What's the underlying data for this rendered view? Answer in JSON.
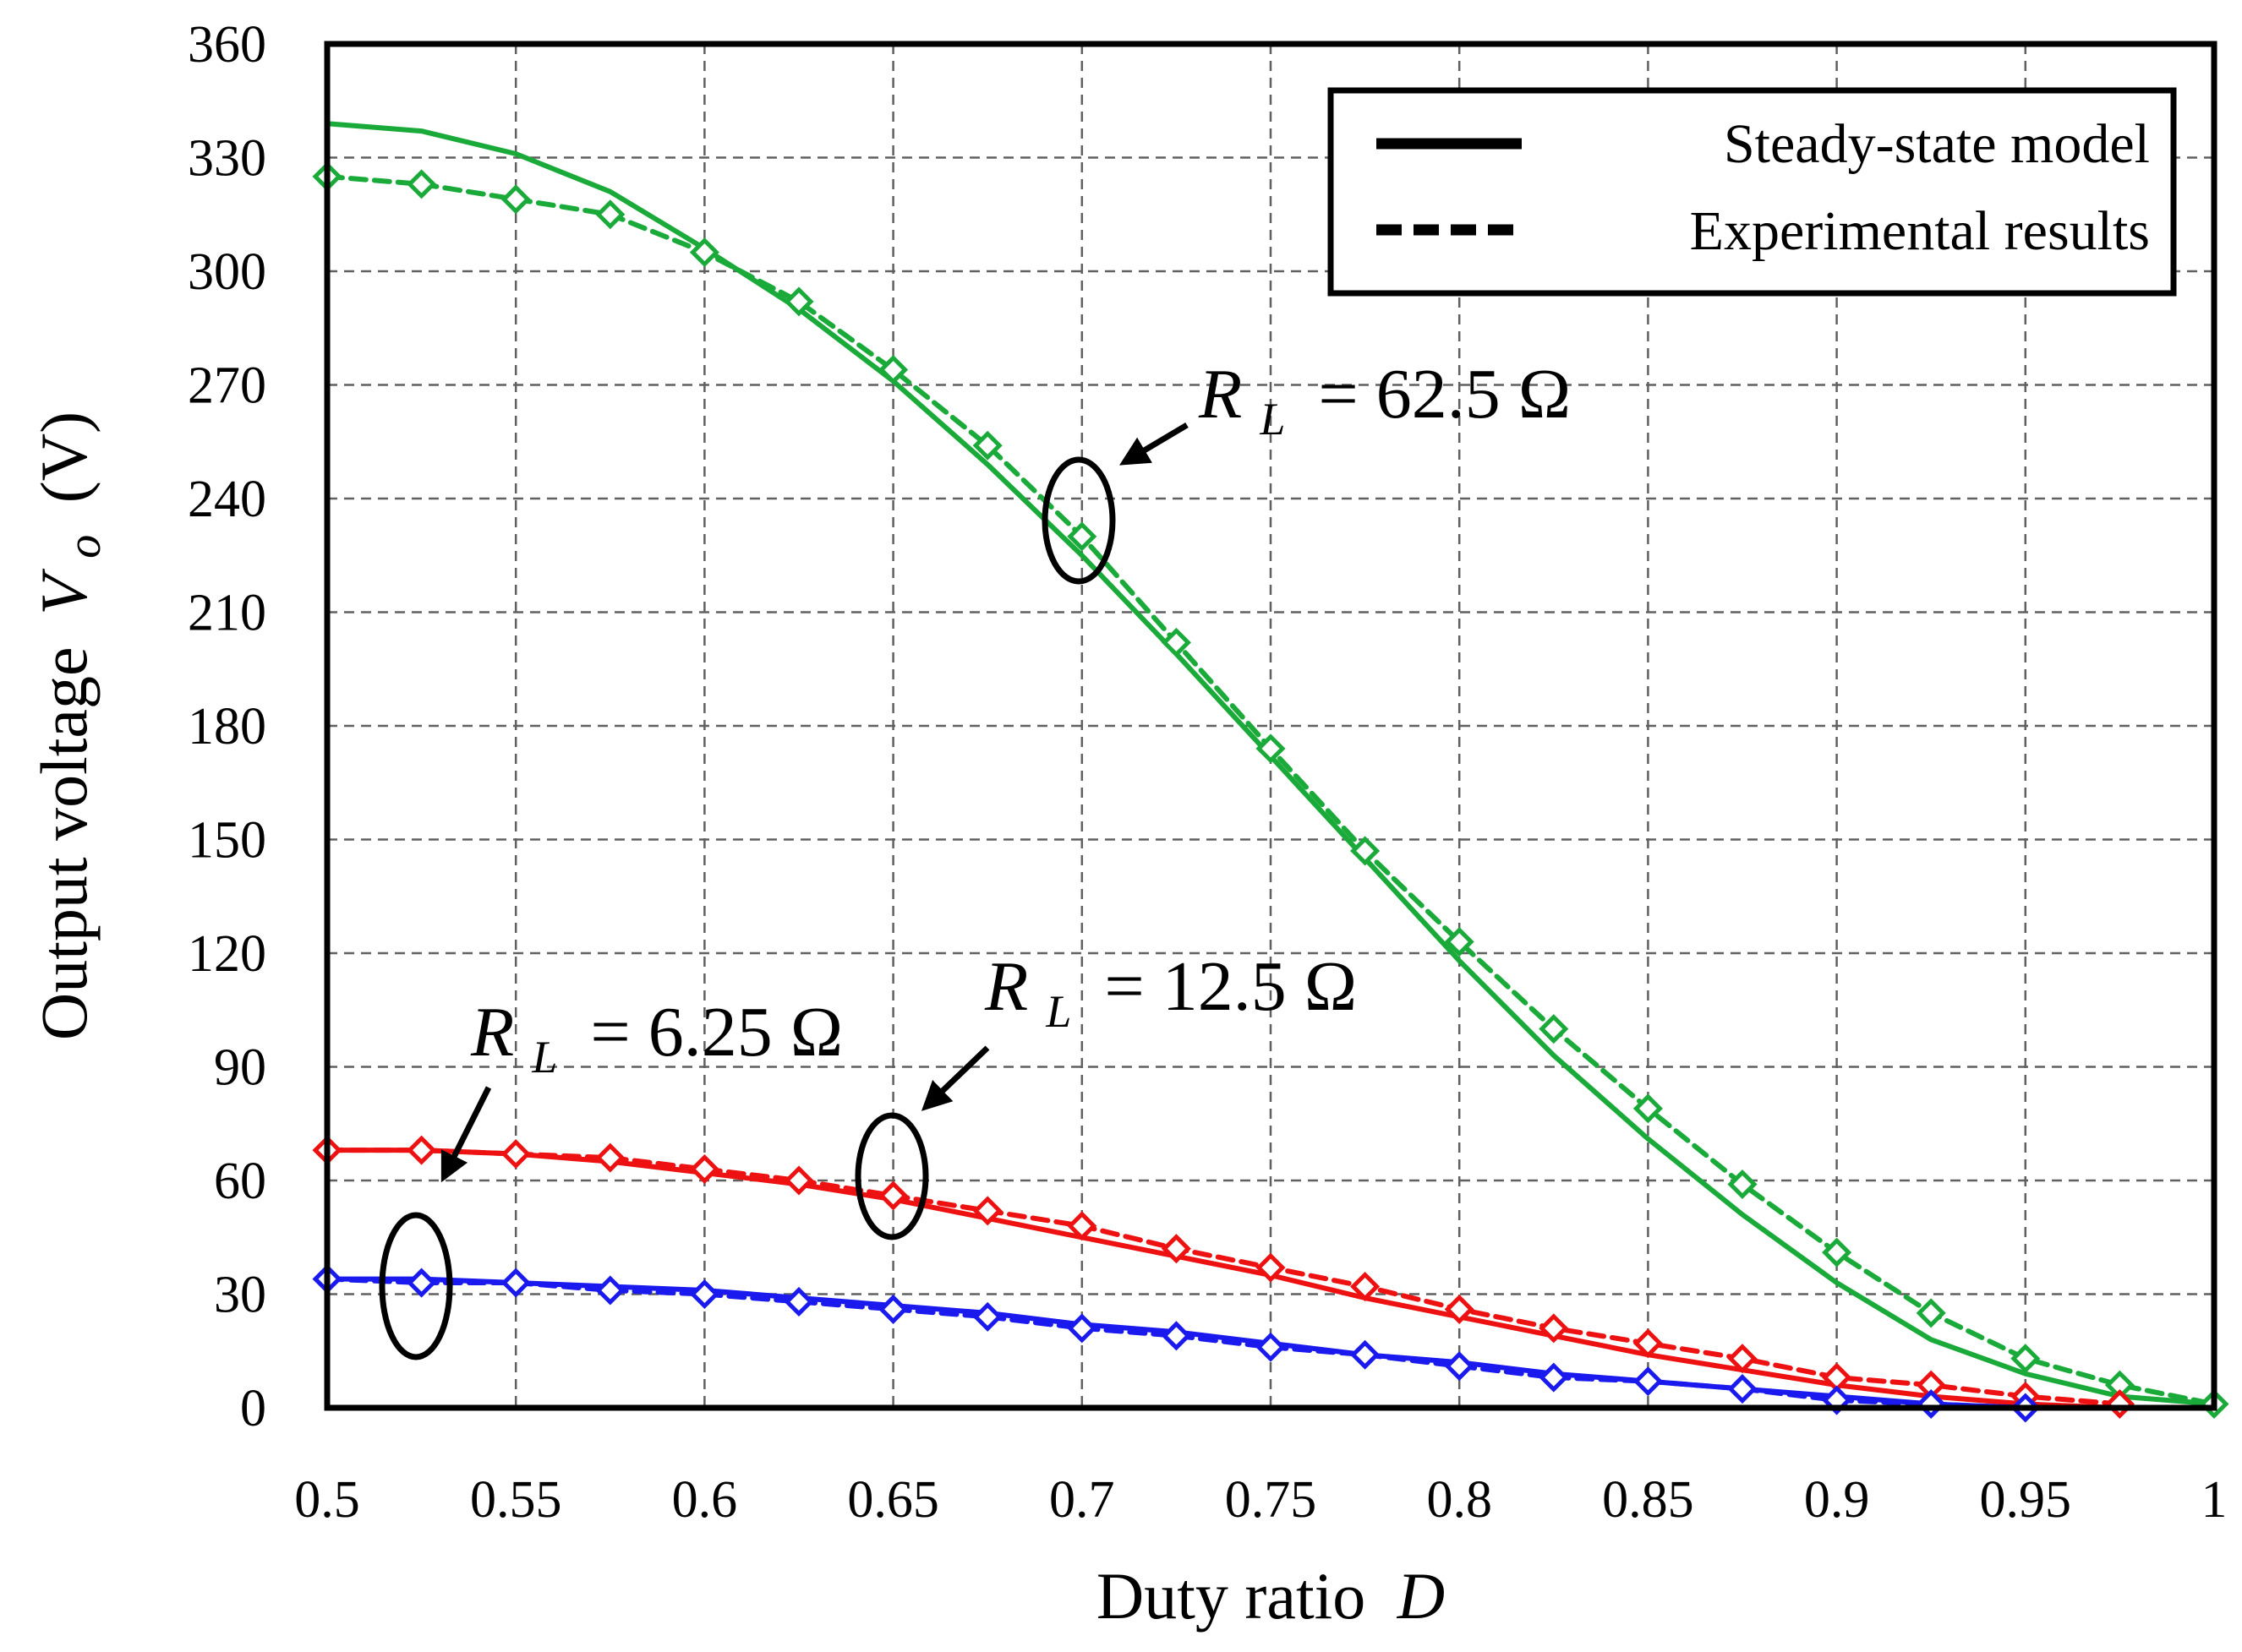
{
  "chart_data": {
    "type": "line",
    "title": "",
    "xlabel": "Duty ratio",
    "xlabel_var": "D",
    "ylabel": "Output voltage",
    "ylabel_var": "V",
    "ylabel_sub": "o",
    "ylabel_unit": "(V)",
    "xlim": [
      0.5,
      1
    ],
    "ylim": [
      0,
      360
    ],
    "grid": true,
    "x_ticks": [
      "0.5",
      "0.55",
      "0.6",
      "0.65",
      "0.7",
      "0.75",
      "0.8",
      "0.85",
      "0.9",
      "0.95",
      "1"
    ],
    "y_ticks": [
      "0",
      "30",
      "60",
      "90",
      "120",
      "150",
      "180",
      "210",
      "240",
      "270",
      "300",
      "330",
      "360"
    ],
    "legend": {
      "placement": "top-right",
      "entries": [
        {
          "label": "Steady-state model",
          "style": "solid"
        },
        {
          "label": "Experimental results",
          "style": "dashed"
        }
      ]
    },
    "series": [
      {
        "name": "RL = 62.5 Ω steady-state model",
        "color": "#1aaa3a",
        "style": "solid",
        "markers": false,
        "x": [
          0.5,
          0.525,
          0.55,
          0.575,
          0.6,
          0.625,
          0.65,
          0.675,
          0.7,
          0.725,
          0.75,
          0.775,
          0.8,
          0.825,
          0.85,
          0.875,
          0.9,
          0.925,
          0.95,
          0.975,
          1.0
        ],
        "y": [
          339,
          337,
          331,
          321,
          306,
          290,
          271,
          249,
          225,
          199,
          172,
          145,
          118,
          93,
          71,
          51,
          33,
          18,
          9,
          3,
          1
        ]
      },
      {
        "name": "RL = 62.5 Ω experimental results",
        "color": "#1aaa3a",
        "style": "dashed",
        "markers": true,
        "x": [
          0.5,
          0.525,
          0.55,
          0.575,
          0.6,
          0.625,
          0.65,
          0.675,
          0.7,
          0.725,
          0.75,
          0.775,
          0.8,
          0.825,
          0.85,
          0.875,
          0.9,
          0.925,
          0.95,
          0.975,
          1.0
        ],
        "y": [
          325,
          323,
          319,
          315,
          305,
          292,
          274,
          254,
          230,
          202,
          174,
          147,
          123,
          100,
          79,
          59,
          41,
          25,
          13,
          6,
          1
        ]
      },
      {
        "name": "RL = 12.5 Ω steady-state model",
        "color": "#ee1111",
        "style": "solid",
        "markers": false,
        "x": [
          0.5,
          0.525,
          0.55,
          0.575,
          0.6,
          0.625,
          0.65,
          0.675,
          0.7,
          0.725,
          0.75,
          0.775,
          0.8,
          0.825,
          0.85,
          0.875,
          0.9,
          0.925,
          0.95,
          0.975,
          1.0
        ],
        "y": [
          68,
          68,
          67,
          65,
          62,
          59,
          55,
          50,
          45,
          40,
          35,
          29,
          24,
          19,
          14,
          10,
          6,
          3,
          1,
          0,
          0
        ]
      },
      {
        "name": "RL = 12.5 Ω experimental results",
        "color": "#ee1111",
        "style": "dashed",
        "markers": true,
        "x": [
          0.5,
          0.525,
          0.55,
          0.575,
          0.6,
          0.625,
          0.65,
          0.675,
          0.7,
          0.725,
          0.75,
          0.775,
          0.8,
          0.825,
          0.85,
          0.875,
          0.9,
          0.925,
          0.95,
          0.975
        ],
        "y": [
          68,
          68,
          67,
          66,
          63,
          60,
          56,
          52,
          48,
          42,
          37,
          32,
          26,
          21,
          17,
          13,
          8,
          6,
          3,
          1
        ]
      },
      {
        "name": "RL = 6.25 Ω steady-state model",
        "color": "#1a1aee",
        "style": "solid",
        "markers": false,
        "x": [
          0.5,
          0.525,
          0.55,
          0.575,
          0.6,
          0.625,
          0.65,
          0.675,
          0.7,
          0.725,
          0.75,
          0.775,
          0.8,
          0.825,
          0.85,
          0.875,
          0.9,
          0.925,
          0.95
        ],
        "y": [
          34,
          34,
          33,
          32,
          31,
          29,
          27,
          25,
          22,
          20,
          17,
          14,
          12,
          9,
          7,
          5,
          3,
          1,
          0
        ]
      },
      {
        "name": "RL = 6.25 Ω experimental results",
        "color": "#1a1aee",
        "style": "dashed",
        "markers": true,
        "x": [
          0.5,
          0.525,
          0.55,
          0.575,
          0.6,
          0.625,
          0.65,
          0.675,
          0.7,
          0.725,
          0.75,
          0.775,
          0.8,
          0.825,
          0.85,
          0.875,
          0.9,
          0.925,
          0.95
        ],
        "y": [
          34,
          33,
          33,
          31,
          30,
          28,
          26,
          24,
          21,
          19,
          16,
          14,
          11,
          8,
          7,
          5,
          2,
          1,
          0
        ]
      }
    ],
    "annotations": [
      {
        "id": "rl-62",
        "symbol": "R",
        "subscript": "L",
        "text": "= 62.5 Ω",
        "target_x": 0.7,
        "target_y": 228
      },
      {
        "id": "rl-12",
        "symbol": "R",
        "subscript": "L",
        "text": "= 12.5 Ω",
        "target_x": 0.65,
        "target_y": 57
      },
      {
        "id": "rl-6",
        "symbol": "R",
        "subscript": "L",
        "text": "= 6.25 Ω",
        "target_x": 0.525,
        "target_y": 33
      }
    ]
  }
}
